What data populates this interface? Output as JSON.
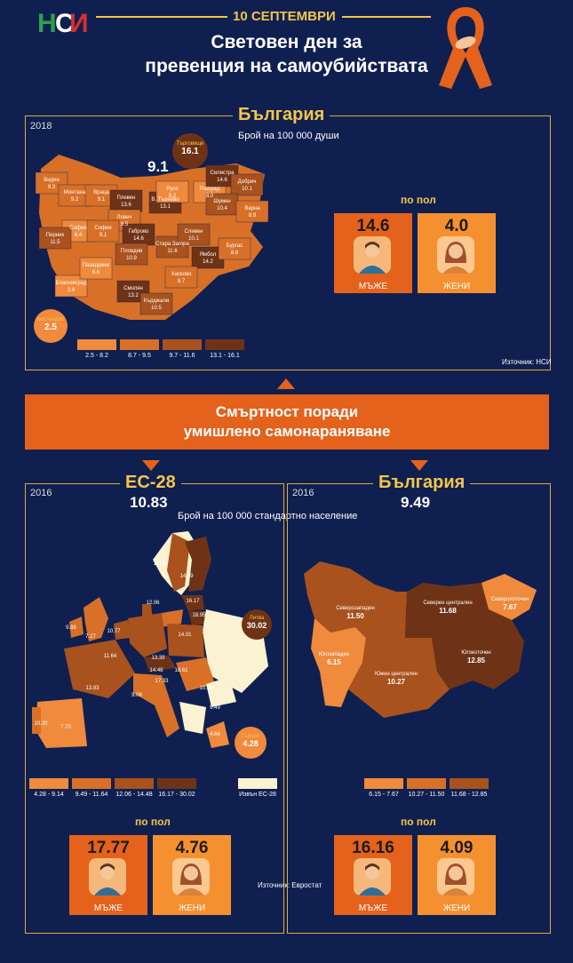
{
  "header": {
    "date": "10 СЕПТЕМВРИ",
    "title_line1": "Световен ден за",
    "title_line2": "превенция на самоубийствата"
  },
  "top": {
    "year": "2018",
    "section": "България",
    "subtitle": "Брой на 100 000 души",
    "national": "9.1",
    "regions": [
      {
        "name": "Видин",
        "value": "9.3"
      },
      {
        "name": "Монтана",
        "value": "9.2"
      },
      {
        "name": "Враца",
        "value": "9.1"
      },
      {
        "name": "Плевен",
        "value": "13.6"
      },
      {
        "name": "Ловеч",
        "value": "9.5"
      },
      {
        "name": "В. Търново",
        "value": "13.1"
      },
      {
        "name": "Русе",
        "value": "8.2"
      },
      {
        "name": "Разград",
        "value": "8.0"
      },
      {
        "name": "Силистра",
        "value": "14.6"
      },
      {
        "name": "Добрич",
        "value": "10.1"
      },
      {
        "name": "Шумен",
        "value": "10.4"
      },
      {
        "name": "Варна",
        "value": "8.9"
      },
      {
        "name": "Търговище",
        "value": "16.1"
      },
      {
        "name": "София",
        "value": "6.4"
      },
      {
        "name": "София",
        "value": "9.1"
      },
      {
        "name": "Перник",
        "value": "11.5"
      },
      {
        "name": "Кюстендил",
        "value": "2.5"
      },
      {
        "name": "Благоевград",
        "value": "3.9"
      },
      {
        "name": "Пазарджик",
        "value": "6.6"
      },
      {
        "name": "Габрово",
        "value": "14.6"
      },
      {
        "name": "Пловдив",
        "value": "10.9"
      },
      {
        "name": "Стара Загора",
        "value": "11.6"
      },
      {
        "name": "Сливен",
        "value": "10.1"
      },
      {
        "name": "Ямбол",
        "value": "14.2"
      },
      {
        "name": "Бургас",
        "value": "8.8"
      },
      {
        "name": "Хасково",
        "value": "8.7"
      },
      {
        "name": "Смолян",
        "value": "13.2"
      },
      {
        "name": "Кърджали",
        "value": "10.5"
      }
    ],
    "legend": [
      "2.5 - 8.2",
      "8.7 - 9.5",
      "9.7 - 11.6",
      "13.1 - 16.1"
    ],
    "sex_header": "по пол",
    "male_value": "14.6",
    "female_value": "4.0",
    "male_label": "МЪЖЕ",
    "female_label": "ЖЕНИ",
    "source": "Източник: НСИ"
  },
  "banner": {
    "line1": "Смъртност поради",
    "line2": "умишлено самонараняване"
  },
  "eu": {
    "year": "2016",
    "section": "ЕС-28",
    "total": "10.83",
    "subtitle": "Брой на 100 000 стандартно население",
    "labels": [
      "12.06",
      "14.09",
      "16.17",
      "18.95",
      "10.77",
      "9.88",
      "7.27",
      "11.64",
      "14.01",
      "13.39",
      "14.48",
      "18.61",
      "13.83",
      "9.08",
      "10.96",
      "9.49",
      "4.66",
      "10.20",
      "7.70",
      "12.06",
      "17.33"
    ],
    "callout_lt_name": "Литва",
    "callout_lt_value": "30.02",
    "callout_gr_name": "Гърция",
    "callout_gr_value": "4.28",
    "legend": [
      "4.28 - 9.14",
      "9.49 - 11.64",
      "12.06 - 14.48",
      "16.17 - 30.02"
    ],
    "outside": "Извън ЕС-28",
    "sex_header": "по пол",
    "male_value": "17.77",
    "female_value": "4.76",
    "male_label": "МЪЖЕ",
    "female_label": "ЖЕНИ",
    "source": "Източник: Евростат"
  },
  "bg": {
    "year": "2016",
    "section": "България",
    "total": "9.49",
    "regions": [
      {
        "name": "Северозападен",
        "value": "11.50"
      },
      {
        "name": "Северен централен",
        "value": "11.68"
      },
      {
        "name": "Североизточен",
        "value": "7.67"
      },
      {
        "name": "Югозападен",
        "value": "6.15"
      },
      {
        "name": "Южен централен",
        "value": "10.27"
      },
      {
        "name": "Югоизточен",
        "value": "12.85"
      }
    ],
    "legend": [
      "6.15 - 7.67",
      "10.27 - 11.50",
      "11.68 - 12.85"
    ],
    "sex_header": "по пол",
    "male_value": "16.16",
    "female_value": "4.09",
    "male_label": "МЪЖЕ",
    "female_label": "ЖЕНИ"
  },
  "colors": {
    "c1": "#f08a3c",
    "c2": "#d87028",
    "c3": "#a9521e",
    "c4": "#6e3316",
    "outside": "#fbf2d2",
    "accent": "#f5c44a",
    "banner": "#e4621c"
  }
}
